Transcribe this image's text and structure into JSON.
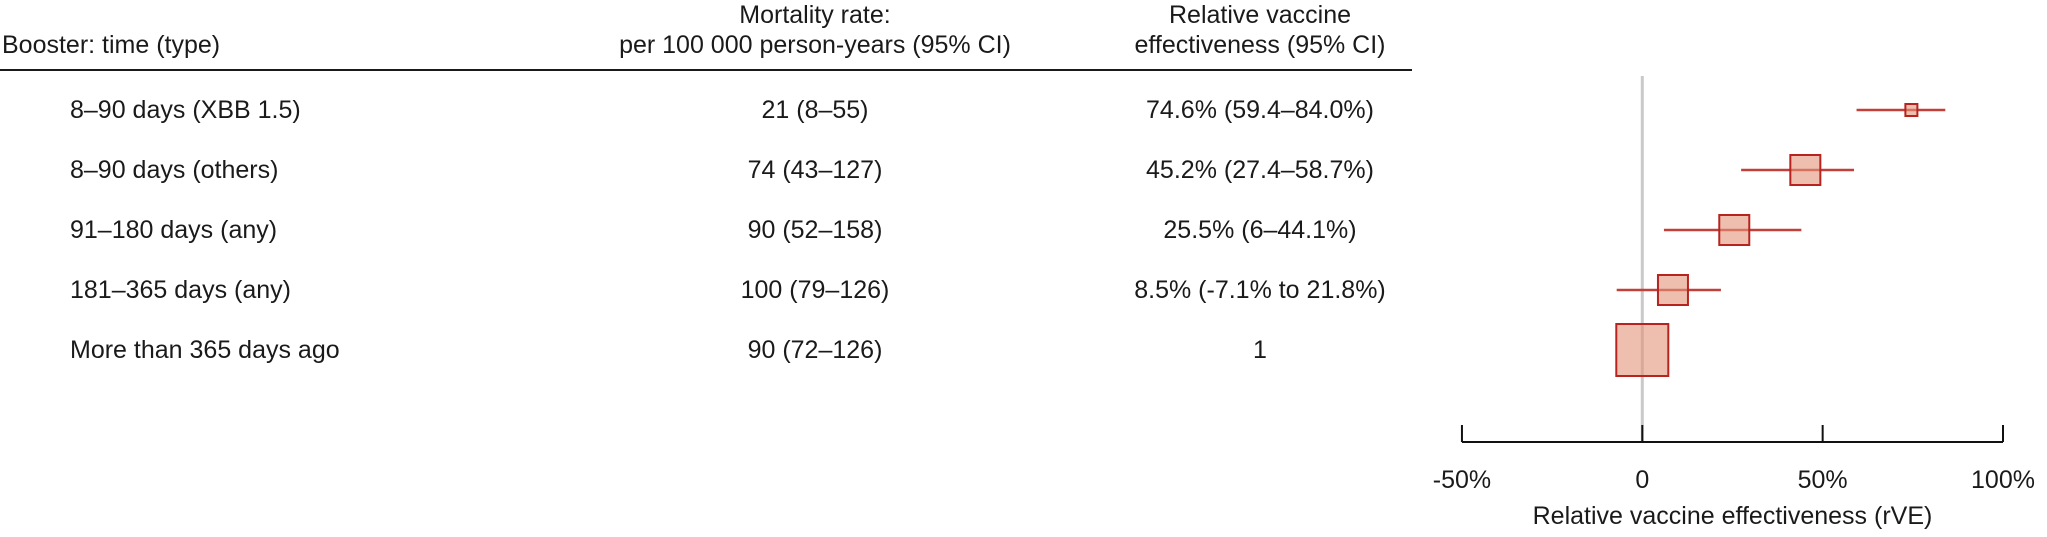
{
  "table": {
    "headers": {
      "col1": "Booster: time (type)",
      "col2_line1": "Mortality rate:",
      "col2_line2": "per 100 000 person-years (95% CI)",
      "col3_line1": "Relative vaccine",
      "col3_line2": "effectiveness (95% CI)"
    },
    "rows": [
      {
        "label": "8–90 days (XBB 1.5)",
        "mortality": "21 (8–55)",
        "rve": "74.6% (59.4–84.0%)"
      },
      {
        "label": "8–90 days (others)",
        "mortality": "74 (43–127)",
        "rve": "45.2% (27.4–58.7%)"
      },
      {
        "label": "91–180 days (any)",
        "mortality": "90 (52–158)",
        "rve": "25.5% (6–44.1%)"
      },
      {
        "label": "181–365 days (any)",
        "mortality": "100 (79–126)",
        "rve": "8.5% (-7.1% to 21.8%)"
      },
      {
        "label": "More than 365 days ago",
        "mortality": "90 (72–126)",
        "rve": "1"
      }
    ]
  },
  "chart_data": {
    "type": "scatter",
    "subtype": "forest-plot",
    "xlabel": "Relative vaccine effectiveness (rVE)",
    "xlim": [
      -50,
      100
    ],
    "x_tick_values": [
      -50,
      0,
      50,
      100
    ],
    "x_tick_labels": [
      "-50%",
      "0",
      "50%",
      "100%"
    ],
    "reference_line_x": 0,
    "grid": false,
    "points": [
      {
        "label": "8–90 days (XBB 1.5)",
        "estimate": 74.6,
        "ci_low": 59.4,
        "ci_high": 84.0,
        "marker_size_px": 12,
        "reference": false
      },
      {
        "label": "8–90 days (others)",
        "estimate": 45.2,
        "ci_low": 27.4,
        "ci_high": 58.7,
        "marker_size_px": 30,
        "reference": false
      },
      {
        "label": "91–180 days (any)",
        "estimate": 25.5,
        "ci_low": 6,
        "ci_high": 44.1,
        "marker_size_px": 30,
        "reference": false
      },
      {
        "label": "181–365 days (any)",
        "estimate": 8.5,
        "ci_low": -7.1,
        "ci_high": 21.8,
        "marker_size_px": 30,
        "reference": false
      },
      {
        "label": "More than 365 days ago",
        "estimate": 0,
        "ci_low": null,
        "ci_high": null,
        "marker_size_px": 52,
        "reference": true
      }
    ]
  },
  "colors": {
    "marker_fill": "rgba(226,149,120,0.6)",
    "marker_border": "#b7231f",
    "ci_line": "#c2403a",
    "reference_line": "#c9c9c9",
    "axis": "#111111",
    "text": "#1a1a1a"
  }
}
